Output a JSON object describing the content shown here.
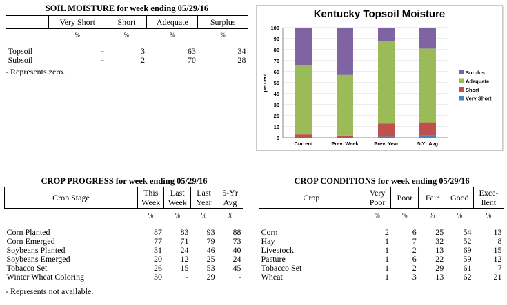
{
  "soil": {
    "title": "SOIL MOISTURE for week ending 05/29/16",
    "headers": [
      "Very Short",
      "Short",
      "Adequate",
      "Surplus"
    ],
    "units": [
      "%",
      "%",
      "%",
      "%"
    ],
    "rows": [
      {
        "label": "Topsoil",
        "values": [
          "-",
          "3",
          "63",
          "34"
        ]
      },
      {
        "label": "Subsoil",
        "values": [
          "-",
          "2",
          "70",
          "28"
        ]
      }
    ],
    "note": "- Represents zero."
  },
  "chart_data": {
    "type": "bar",
    "stacked": true,
    "title": "Kentucky Topsoil Moisture",
    "ylabel": "percent",
    "xlabel": "",
    "ylim": [
      0,
      100
    ],
    "yticks": [
      0,
      10,
      20,
      30,
      40,
      50,
      60,
      70,
      80,
      90,
      100
    ],
    "grid": true,
    "legend_position": "right",
    "categories": [
      "Current",
      "Prev. Week",
      "Prev. Year",
      "5-Yr Avg"
    ],
    "series": [
      {
        "name": "Very Short",
        "color": "#4f81bd",
        "values": [
          0,
          0,
          1,
          2
        ]
      },
      {
        "name": "Short",
        "color": "#c0504d",
        "values": [
          3,
          2,
          12,
          12
        ]
      },
      {
        "name": "Adequate",
        "color": "#9bbb59",
        "values": [
          63,
          55,
          75,
          67
        ]
      },
      {
        "name": "Surplus",
        "color": "#8064a2",
        "values": [
          34,
          43,
          12,
          19
        ]
      }
    ]
  },
  "progress": {
    "title": "CROP PROGRESS for week ending 05/29/16",
    "stage_header": "Crop Stage",
    "headers": [
      [
        "This",
        "Week"
      ],
      [
        "Last",
        "Week"
      ],
      [
        "Last",
        "Year"
      ],
      [
        "5-Yr",
        "Avg"
      ]
    ],
    "units": [
      "%",
      "%",
      "%",
      "%"
    ],
    "rows": [
      {
        "label": "Corn Planted",
        "values": [
          "87",
          "83",
          "93",
          "88"
        ]
      },
      {
        "label": "Corn Emerged",
        "values": [
          "77",
          "71",
          "79",
          "73"
        ]
      },
      {
        "label": "Soybeans Planted",
        "values": [
          "31",
          "24",
          "46",
          "40"
        ]
      },
      {
        "label": "Soybeans Emerged",
        "values": [
          "20",
          "12",
          "25",
          "24"
        ]
      },
      {
        "label": "Tobacco Set",
        "values": [
          "26",
          "15",
          "53",
          "45"
        ]
      },
      {
        "label": "Winter Wheat Coloring",
        "values": [
          "30",
          "-",
          "29",
          "-"
        ]
      }
    ],
    "note": "- Represents not available."
  },
  "conditions": {
    "title": "CROP CONDITIONS for week ending 05/29/16",
    "crop_header": "Crop",
    "headers": [
      [
        "Very",
        "Poor"
      ],
      [
        "Poor"
      ],
      [
        "Fair"
      ],
      [
        "Good"
      ],
      [
        "Exce-",
        "llent"
      ]
    ],
    "units": [
      "%",
      "%",
      "%",
      "%",
      "%"
    ],
    "rows": [
      {
        "label": "Corn",
        "values": [
          "2",
          "6",
          "25",
          "54",
          "13"
        ]
      },
      {
        "label": "Hay",
        "values": [
          "1",
          "7",
          "32",
          "52",
          "8"
        ]
      },
      {
        "label": "Livestock",
        "values": [
          "1",
          "2",
          "13",
          "69",
          "15"
        ]
      },
      {
        "label": "Pasture",
        "values": [
          "1",
          "6",
          "22",
          "59",
          "12"
        ]
      },
      {
        "label": "Tobacco Set",
        "values": [
          "1",
          "2",
          "29",
          "61",
          "7"
        ]
      },
      {
        "label": "Wheat",
        "values": [
          "1",
          "3",
          "13",
          "62",
          "21"
        ]
      }
    ]
  }
}
